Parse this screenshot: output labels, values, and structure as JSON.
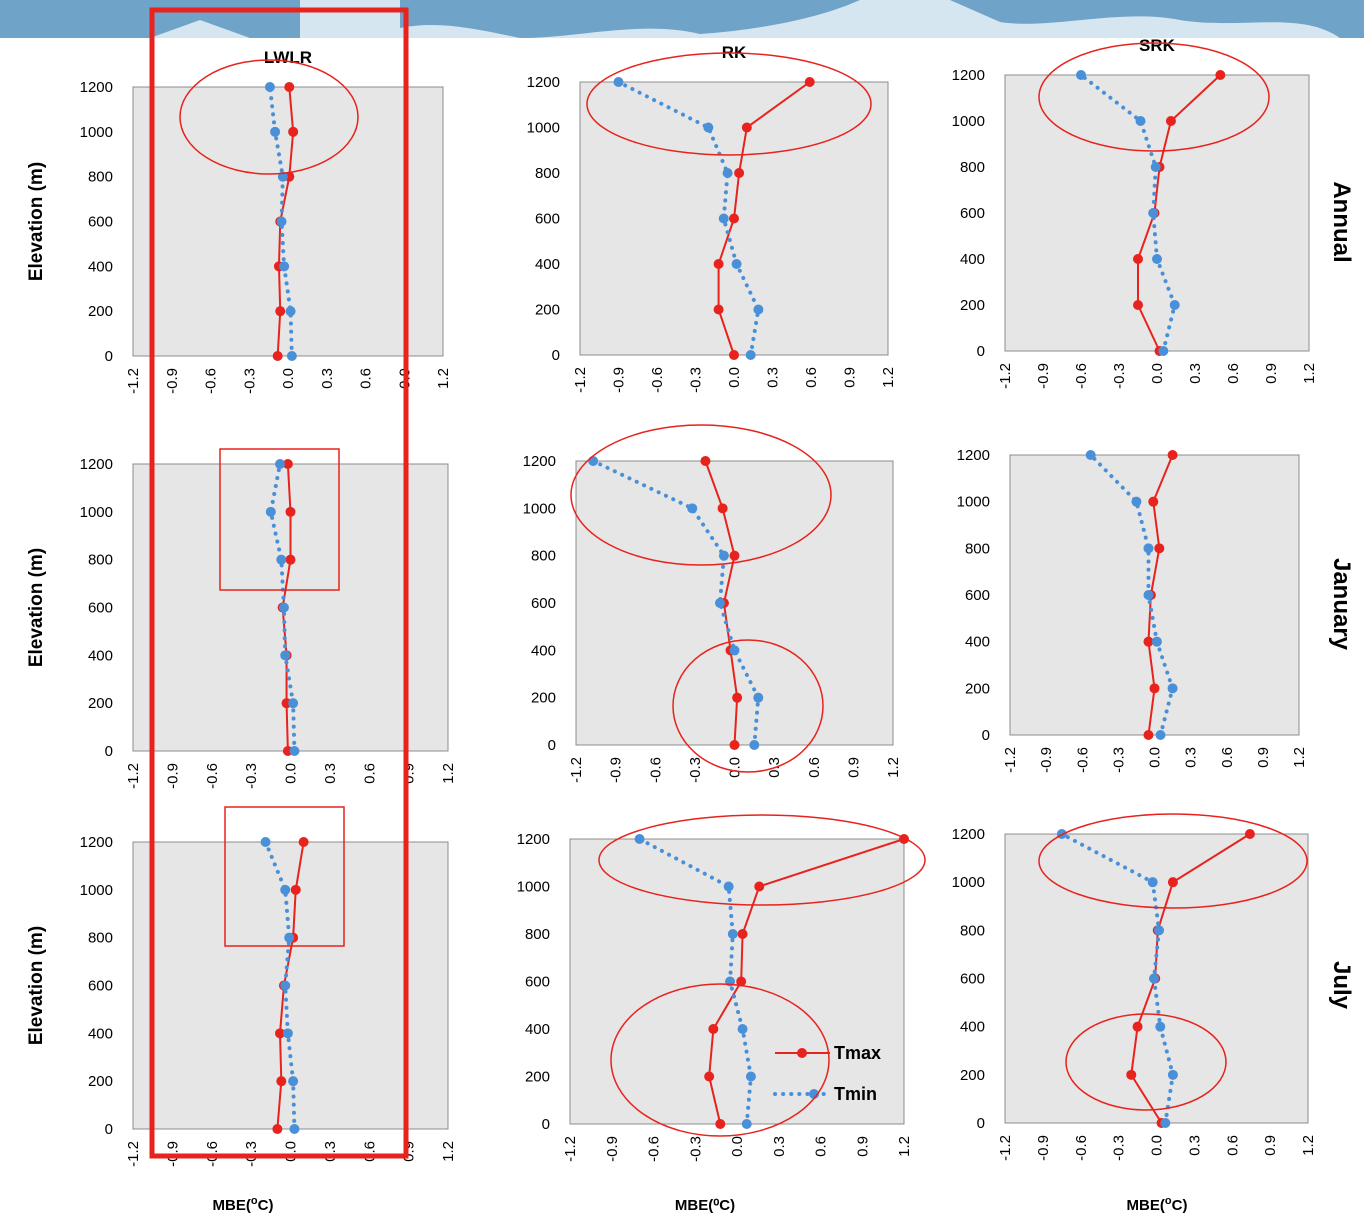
{
  "colors": {
    "tmax": "#e8221c",
    "tmin": "#4a90d9",
    "annotation": "#e8221c",
    "plot_bg": "#e6e6e6",
    "banner_main": "#6fa3c7",
    "banner_light": "#d6e6f1"
  },
  "legend": {
    "tmax": "Tmax",
    "tmin": "Tmin"
  },
  "y_axis_label": "Elevation (m)",
  "x_axis_label_prefix": "MBE(",
  "x_axis_label_sup": "o",
  "x_axis_label_suffix": "C)",
  "x_axis_label_mid": "MBE(⁰C)",
  "row_labels": [
    "Annual",
    "January",
    "July"
  ],
  "column_titles": [
    "LWLR",
    "RK",
    "SRK"
  ],
  "chart_data": [
    {
      "id": "annual-lwlr",
      "type": "line",
      "title": "LWLR",
      "ylabel": "Elevation (m)",
      "xlabel": "",
      "xlim": [
        -1.2,
        1.2
      ],
      "ylim": [
        0,
        1200
      ],
      "xticks": [
        "-1.2",
        "-0.9",
        "-0.6",
        "-0.3",
        "0.0",
        "0.3",
        "0.6",
        "0.9",
        "1.2"
      ],
      "yticks": [
        0,
        200,
        400,
        600,
        800,
        1000,
        1200
      ],
      "series": [
        {
          "name": "Tmax",
          "points": [
            [
              -0.08,
              0
            ],
            [
              -0.06,
              200
            ],
            [
              -0.07,
              400
            ],
            [
              -0.06,
              600
            ],
            [
              0.01,
              800
            ],
            [
              0.04,
              1000
            ],
            [
              0.01,
              1200
            ]
          ]
        },
        {
          "name": "Tmin",
          "points": [
            [
              0.03,
              0
            ],
            [
              0.02,
              200
            ],
            [
              -0.03,
              400
            ],
            [
              -0.05,
              600
            ],
            [
              -0.04,
              800
            ],
            [
              -0.1,
              1000
            ],
            [
              -0.14,
              1200
            ]
          ]
        }
      ]
    },
    {
      "id": "annual-rk",
      "type": "line",
      "title": "RK",
      "ylabel": "",
      "xlabel": "",
      "xlim": [
        -1.2,
        1.2
      ],
      "ylim": [
        0,
        1200
      ],
      "xticks": [
        "-1.2",
        "-0.9",
        "-0.6",
        "-0.3",
        "0.0",
        "0.3",
        "0.6",
        "0.9",
        "1.2"
      ],
      "yticks": [
        0,
        200,
        400,
        600,
        800,
        1000,
        1200
      ],
      "series": [
        {
          "name": "Tmax",
          "points": [
            [
              0.0,
              0
            ],
            [
              -0.12,
              200
            ],
            [
              -0.12,
              400
            ],
            [
              0.0,
              600
            ],
            [
              0.04,
              800
            ],
            [
              0.1,
              1000
            ],
            [
              0.59,
              1200
            ]
          ]
        },
        {
          "name": "Tmin",
          "points": [
            [
              0.13,
              0
            ],
            [
              0.19,
              200
            ],
            [
              0.02,
              400
            ],
            [
              -0.08,
              600
            ],
            [
              -0.05,
              800
            ],
            [
              -0.2,
              1000
            ],
            [
              -0.9,
              1200
            ]
          ]
        }
      ]
    },
    {
      "id": "annual-srk",
      "type": "line",
      "title": "SRK",
      "ylabel": "",
      "xlabel": "",
      "xlim": [
        -1.2,
        1.2
      ],
      "ylim": [
        0,
        1200
      ],
      "xticks": [
        "-1.2",
        "-0.9",
        "-0.6",
        "-0.3",
        "0.0",
        "0.3",
        "0.6",
        "0.9",
        "1.2"
      ],
      "yticks": [
        0,
        200,
        400,
        600,
        800,
        1000,
        1200
      ],
      "series": [
        {
          "name": "Tmax",
          "points": [
            [
              0.02,
              0
            ],
            [
              -0.15,
              200
            ],
            [
              -0.15,
              400
            ],
            [
              -0.02,
              600
            ],
            [
              0.02,
              800
            ],
            [
              0.11,
              1000
            ],
            [
              0.5,
              1200
            ]
          ]
        },
        {
          "name": "Tmin",
          "points": [
            [
              0.05,
              0
            ],
            [
              0.14,
              200
            ],
            [
              0.0,
              400
            ],
            [
              -0.03,
              600
            ],
            [
              -0.01,
              800
            ],
            [
              -0.13,
              1000
            ],
            [
              -0.6,
              1200
            ]
          ]
        }
      ]
    },
    {
      "id": "january-lwlr",
      "type": "line",
      "title": "",
      "ylabel": "Elevation (m)",
      "xlabel": "",
      "xlim": [
        -1.2,
        1.2
      ],
      "ylim": [
        0,
        1200
      ],
      "xticks": [
        "-1.2",
        "-0.9",
        "-0.6",
        "-0.3",
        "0.0",
        "0.3",
        "0.6",
        "0.9",
        "1.2"
      ],
      "yticks": [
        0,
        200,
        400,
        600,
        800,
        1000,
        1200
      ],
      "series": [
        {
          "name": "Tmax",
          "points": [
            [
              -0.02,
              0
            ],
            [
              -0.03,
              200
            ],
            [
              -0.03,
              400
            ],
            [
              -0.06,
              600
            ],
            [
              0.0,
              800
            ],
            [
              0.0,
              1000
            ],
            [
              -0.02,
              1200
            ]
          ]
        },
        {
          "name": "Tmin",
          "points": [
            [
              0.03,
              0
            ],
            [
              0.02,
              200
            ],
            [
              -0.04,
              400
            ],
            [
              -0.05,
              600
            ],
            [
              -0.07,
              800
            ],
            [
              -0.15,
              1000
            ],
            [
              -0.08,
              1200
            ]
          ]
        }
      ]
    },
    {
      "id": "january-rk",
      "type": "line",
      "title": "",
      "ylabel": "",
      "xlabel": "",
      "xlim": [
        -1.2,
        1.2
      ],
      "ylim": [
        0,
        1200
      ],
      "xticks": [
        "-1.2",
        "-0.9",
        "-0.6",
        "-0.3",
        "0.0",
        "0.3",
        "0.6",
        "0.9",
        "1.2"
      ],
      "yticks": [
        0,
        200,
        400,
        600,
        800,
        1000,
        1200
      ],
      "series": [
        {
          "name": "Tmax",
          "points": [
            [
              0.0,
              0
            ],
            [
              0.02,
              200
            ],
            [
              -0.03,
              400
            ],
            [
              -0.08,
              600
            ],
            [
              0.0,
              800
            ],
            [
              -0.09,
              1000
            ],
            [
              -0.22,
              1200
            ]
          ]
        },
        {
          "name": "Tmin",
          "points": [
            [
              0.15,
              0
            ],
            [
              0.18,
              200
            ],
            [
              0.0,
              400
            ],
            [
              -0.11,
              600
            ],
            [
              -0.08,
              800
            ],
            [
              -0.32,
              1000
            ],
            [
              -1.07,
              1200
            ]
          ]
        }
      ]
    },
    {
      "id": "january-srk",
      "type": "line",
      "title": "",
      "ylabel": "",
      "xlabel": "",
      "xlim": [
        -1.2,
        1.2
      ],
      "ylim": [
        0,
        1200
      ],
      "xticks": [
        "-1.2",
        "-0.9",
        "-0.6",
        "-0.3",
        "0.0",
        "0.3",
        "0.6",
        "0.9",
        "1.2"
      ],
      "yticks": [
        0,
        200,
        400,
        600,
        800,
        1000,
        1200
      ],
      "series": [
        {
          "name": "Tmax",
          "points": [
            [
              -0.05,
              0
            ],
            [
              0.0,
              200
            ],
            [
              -0.05,
              400
            ],
            [
              -0.03,
              600
            ],
            [
              0.04,
              800
            ],
            [
              -0.01,
              1000
            ],
            [
              0.15,
              1200
            ]
          ]
        },
        {
          "name": "Tmin",
          "points": [
            [
              0.05,
              0
            ],
            [
              0.15,
              200
            ],
            [
              0.02,
              400
            ],
            [
              -0.05,
              600
            ],
            [
              -0.05,
              800
            ],
            [
              -0.15,
              1000
            ],
            [
              -0.53,
              1200
            ]
          ]
        }
      ]
    },
    {
      "id": "july-lwlr",
      "type": "line",
      "title": "",
      "ylabel": "Elevation (m)",
      "xlabel": "MBE(oC)",
      "xlim": [
        -1.2,
        1.2
      ],
      "ylim": [
        0,
        1200
      ],
      "xticks": [
        "-1.2",
        "-0.9",
        "-0.6",
        "-0.3",
        "0.0",
        "0.3",
        "0.6",
        "0.9",
        "1.2"
      ],
      "yticks": [
        0,
        200,
        400,
        600,
        800,
        1000,
        1200
      ],
      "series": [
        {
          "name": "Tmax",
          "points": [
            [
              -0.1,
              0
            ],
            [
              -0.07,
              200
            ],
            [
              -0.08,
              400
            ],
            [
              -0.05,
              600
            ],
            [
              0.02,
              800
            ],
            [
              0.04,
              1000
            ],
            [
              0.1,
              1200
            ]
          ]
        },
        {
          "name": "Tmin",
          "points": [
            [
              0.03,
              0
            ],
            [
              0.02,
              200
            ],
            [
              -0.02,
              400
            ],
            [
              -0.04,
              600
            ],
            [
              -0.01,
              800
            ],
            [
              -0.04,
              1000
            ],
            [
              -0.19,
              1200
            ]
          ]
        }
      ]
    },
    {
      "id": "july-rk",
      "type": "line",
      "title": "",
      "ylabel": "",
      "xlabel": "MBE(⁰C)",
      "xlim": [
        -1.2,
        1.2
      ],
      "ylim": [
        0,
        1200
      ],
      "xticks": [
        "-1.2",
        "-0.9",
        "-0.6",
        "-0.3",
        "0.0",
        "0.3",
        "0.6",
        "0.9",
        "1.2"
      ],
      "yticks": [
        0,
        200,
        400,
        600,
        800,
        1000,
        1200
      ],
      "series": [
        {
          "name": "Tmax",
          "points": [
            [
              -0.12,
              0
            ],
            [
              -0.2,
              200
            ],
            [
              -0.17,
              400
            ],
            [
              0.03,
              600
            ],
            [
              0.04,
              800
            ],
            [
              0.16,
              1000
            ],
            [
              1.2,
              1200
            ]
          ]
        },
        {
          "name": "Tmin",
          "points": [
            [
              0.07,
              0
            ],
            [
              0.1,
              200
            ],
            [
              0.04,
              400
            ],
            [
              -0.05,
              600
            ],
            [
              -0.03,
              800
            ],
            [
              -0.06,
              1000
            ],
            [
              -0.7,
              1200
            ]
          ]
        }
      ]
    },
    {
      "id": "july-srk",
      "type": "line",
      "title": "",
      "ylabel": "",
      "xlabel": "MBE(oC)",
      "xlim": [
        -1.2,
        1.2
      ],
      "ylim": [
        0,
        1200
      ],
      "xticks": [
        "-1.2",
        "-0.9",
        "-0.6",
        "-0.3",
        "0.0",
        "0.3",
        "0.6",
        "0.9",
        "1.2"
      ],
      "yticks": [
        0,
        200,
        400,
        600,
        800,
        1000,
        1200
      ],
      "series": [
        {
          "name": "Tmax",
          "points": [
            [
              0.04,
              0
            ],
            [
              -0.2,
              200
            ],
            [
              -0.15,
              400
            ],
            [
              -0.01,
              600
            ],
            [
              0.01,
              800
            ],
            [
              0.13,
              1000
            ],
            [
              0.74,
              1200
            ]
          ]
        },
        {
          "name": "Tmin",
          "points": [
            [
              0.07,
              0
            ],
            [
              0.13,
              200
            ],
            [
              0.03,
              400
            ],
            [
              -0.02,
              600
            ],
            [
              0.02,
              800
            ],
            [
              -0.03,
              1000
            ],
            [
              -0.75,
              1200
            ]
          ]
        }
      ]
    }
  ]
}
